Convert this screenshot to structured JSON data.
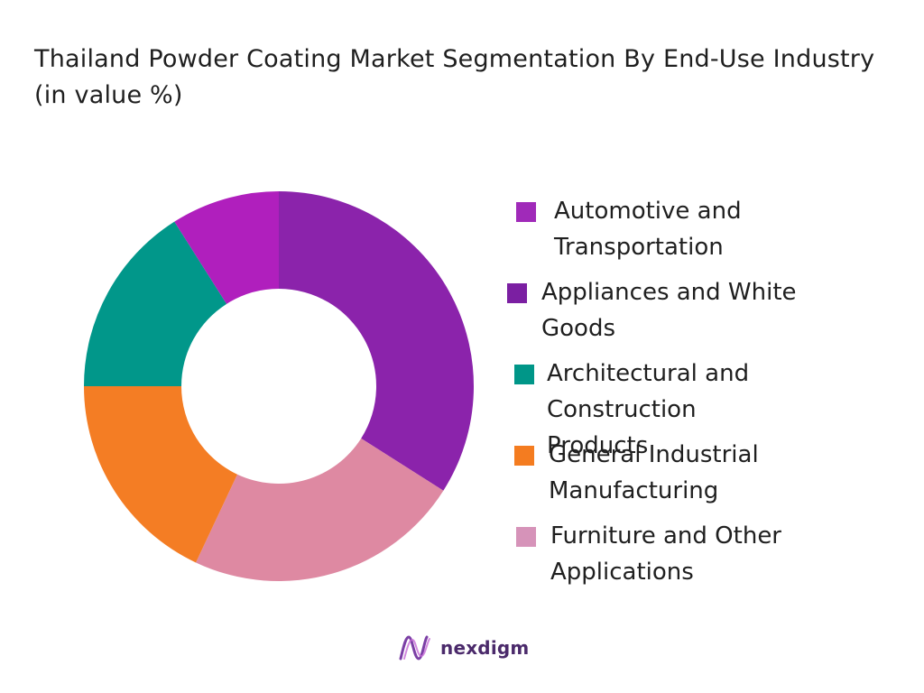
{
  "chart_data": {
    "type": "pie",
    "title": "Thailand Powder Coating Market Segmentation By End-Use Industry (in value %)",
    "categories": [
      "Automotive and Transportation",
      "Appliances and White Goods",
      "Architectural and Construction Products",
      "General Industrial Manufacturing",
      "Furniture and Other Applications"
    ],
    "slices": [
      {
        "label": "Appliances and White Goods",
        "value": 34,
        "color": "#8b23ab"
      },
      {
        "label": "Furniture and Other Applications",
        "value": 23,
        "color": "#de89a2"
      },
      {
        "label": "General Industrial Manufacturing",
        "value": 18,
        "color": "#f47d24"
      },
      {
        "label": "Architectural and Construction Products",
        "value": 16,
        "color": "#01978a"
      },
      {
        "label": "Automotive and Transportation",
        "value": 9,
        "color": "#b01fbd"
      }
    ],
    "donut": true,
    "legend_position": "right"
  },
  "legend": [
    {
      "label": "Automotive and Transportation",
      "color": "#a02ab9"
    },
    {
      "label": "Appliances and White Goods",
      "color": "#7b1fa2"
    },
    {
      "label": "Architectural and Construction Products",
      "color": "#009688"
    },
    {
      "label": "General Industrial Manufacturing",
      "color": "#f47c20"
    },
    {
      "label": "Furniture and Other Applications",
      "color": "#d693b9"
    }
  ],
  "brand": {
    "name": "nexdigm",
    "icon": "nexdigm-logo-icon",
    "color": "#4b2a6b"
  }
}
